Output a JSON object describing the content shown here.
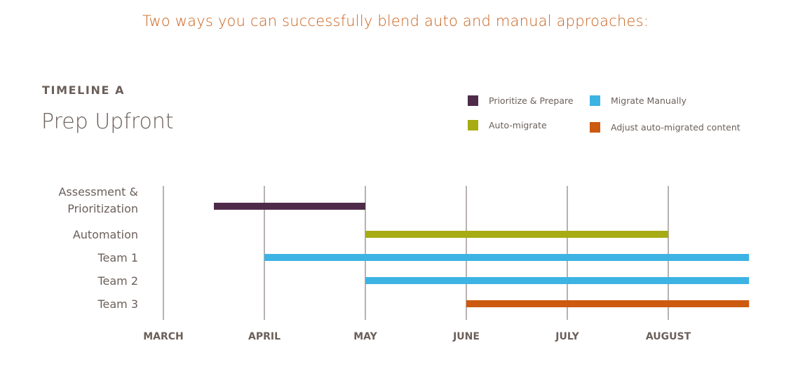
{
  "headline": "Two ways you can successfully blend auto and manual approaches:",
  "timeline": {
    "label": "TIMELINE A",
    "title": "Prep Upfront"
  },
  "legend": [
    {
      "name": "Prioritize & Prepare",
      "color": "#4f2b4a"
    },
    {
      "name": "Migrate Manually",
      "color": "#3db3e3"
    },
    {
      "name": "Auto-migrate",
      "color": "#a7ab14"
    },
    {
      "name": "Adjust auto-migrated content",
      "color": "#cc5a10"
    }
  ],
  "chart_data": {
    "type": "gantt",
    "months": [
      "MARCH",
      "APRIL",
      "MAY",
      "JUNE",
      "JULY",
      "AUGUST"
    ],
    "xlim": [
      0,
      5.8
    ],
    "grid": true,
    "rows": [
      {
        "label": [
          "Assessment &",
          "Prioritization"
        ],
        "start": 0.5,
        "end": 2.0,
        "category": "Prioritize & Prepare",
        "color": "#4f2b4a"
      },
      {
        "label": [
          "Automation"
        ],
        "start": 2.0,
        "end": 5.0,
        "category": "Auto-migrate",
        "color": "#a7ab14"
      },
      {
        "label": [
          "Team 1"
        ],
        "start": 1.0,
        "end": 5.8,
        "category": "Migrate Manually",
        "color": "#3db3e3"
      },
      {
        "label": [
          "Team 2"
        ],
        "start": 2.0,
        "end": 5.8,
        "category": "Migrate Manually",
        "color": "#3db3e3"
      },
      {
        "label": [
          "Team 3"
        ],
        "start": 3.0,
        "end": 5.8,
        "category": "Adjust auto-migrated content",
        "color": "#cc5a10"
      }
    ]
  }
}
